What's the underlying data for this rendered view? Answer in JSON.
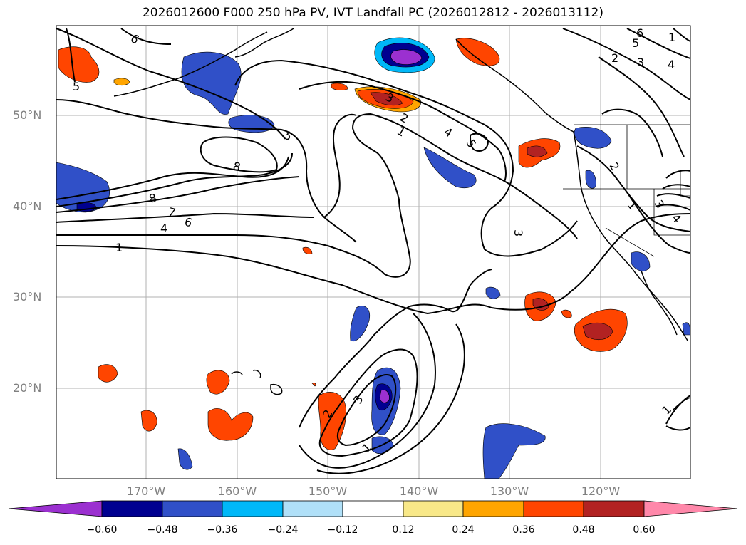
{
  "title": "2026012600 F000 250 hPa PV, IVT Landfall PC (2026012812 - 2026013112)",
  "map": {
    "lat_labels": [
      "50°N",
      "40°N",
      "30°N",
      "20°N"
    ],
    "lon_labels": [
      "170°W",
      "160°W",
      "150°W",
      "140°W",
      "130°W",
      "120°W"
    ],
    "contour_levels_shown": [
      "1",
      "2",
      "3",
      "4",
      "5",
      "6",
      "7",
      "8"
    ],
    "contour_labels": [
      "6",
      "5",
      "5",
      "8",
      "8",
      "7",
      "6",
      "4",
      "1",
      "3",
      "2",
      "1",
      "4",
      "5",
      "6",
      "5",
      "4",
      "3",
      "2",
      "1",
      "3",
      "4",
      "2",
      "1",
      "3",
      "2",
      "3",
      "1",
      "1"
    ],
    "colors": {
      "line": "#000000",
      "grid": "#b0b0b0",
      "neg_strong": "#9b30d0",
      "neg_dark": "#000090",
      "neg_mid": "#3050c8",
      "neg_light": "#00b8f8",
      "pos_light": "#f8e888",
      "pos_orange": "#ffa500",
      "pos_red": "#ff4500",
      "pos_dark": "#b22222"
    }
  },
  "colorbar": {
    "ticks": [
      "−0.60",
      "−0.48",
      "−0.36",
      "−0.24",
      "−0.12",
      "0.12",
      "0.24",
      "0.36",
      "0.48",
      "0.60"
    ],
    "colors": [
      "#9b30d0",
      "#000090",
      "#3050c8",
      "#00b8f8",
      "#b0e0f8",
      "#ffffff",
      "#f8e888",
      "#ffa500",
      "#ff4500",
      "#b22222",
      "#ff88aa"
    ]
  }
}
